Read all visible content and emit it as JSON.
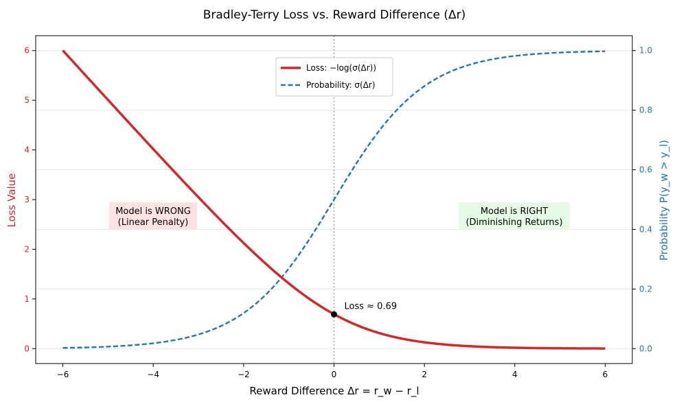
{
  "chart_data": {
    "type": "line",
    "title": "Bradley-Terry Loss vs. Reward Difference (Δr)",
    "xlabel": "Reward Difference Δr = r_w − r_l",
    "ylabel_left": "Loss Value",
    "ylabel_right": "Probability P(y_w > y_l)",
    "xlim": [
      -6.6,
      6.6
    ],
    "ylim_left": [
      -0.3,
      6.3
    ],
    "ylim_right": [
      -0.05,
      1.05
    ],
    "xticks": [
      -6,
      -4,
      -2,
      0,
      2,
      4,
      6
    ],
    "yticks_left": [
      0,
      1,
      2,
      3,
      4,
      5,
      6
    ],
    "yticks_right": [
      0.0,
      0.2,
      0.4,
      0.6,
      0.8,
      1.0
    ],
    "grid": true,
    "legend_position": "top-center",
    "x": [
      -6,
      -5,
      -4,
      -3,
      -2,
      -1.5,
      -1,
      -0.5,
      0,
      0.5,
      1,
      1.5,
      2,
      3,
      4,
      5,
      6
    ],
    "series": [
      {
        "name": "Loss: −log(σ(Δr))",
        "axis": "left",
        "color": "#d62728",
        "style": "solid",
        "values": [
          6.0,
          5.01,
          4.02,
          3.05,
          2.13,
          1.7,
          1.31,
          0.97,
          0.69,
          0.47,
          0.31,
          0.2,
          0.13,
          0.05,
          0.02,
          0.01,
          0.0
        ]
      },
      {
        "name": "Probability: σ(Δr)",
        "axis": "right",
        "color": "#1f77b4",
        "style": "dashed",
        "values": [
          0.002,
          0.007,
          0.018,
          0.047,
          0.119,
          0.182,
          0.269,
          0.378,
          0.5,
          0.622,
          0.731,
          0.818,
          0.881,
          0.953,
          0.982,
          0.993,
          0.998
        ]
      }
    ],
    "annotations": {
      "wrong_line1": "Model is WRONG",
      "wrong_line2": "(Linear Penalty)",
      "right_line1": "Model is RIGHT",
      "right_line2": "(Diminishing Returns)",
      "point_label": "Loss ≈ 0.69",
      "point_x": 0,
      "point_y": 0.69
    },
    "colors": {
      "loss": "#d62728",
      "prob": "#1f77b4",
      "wrong_box": "#fde2e2",
      "right_box": "#e5fbe5"
    }
  }
}
